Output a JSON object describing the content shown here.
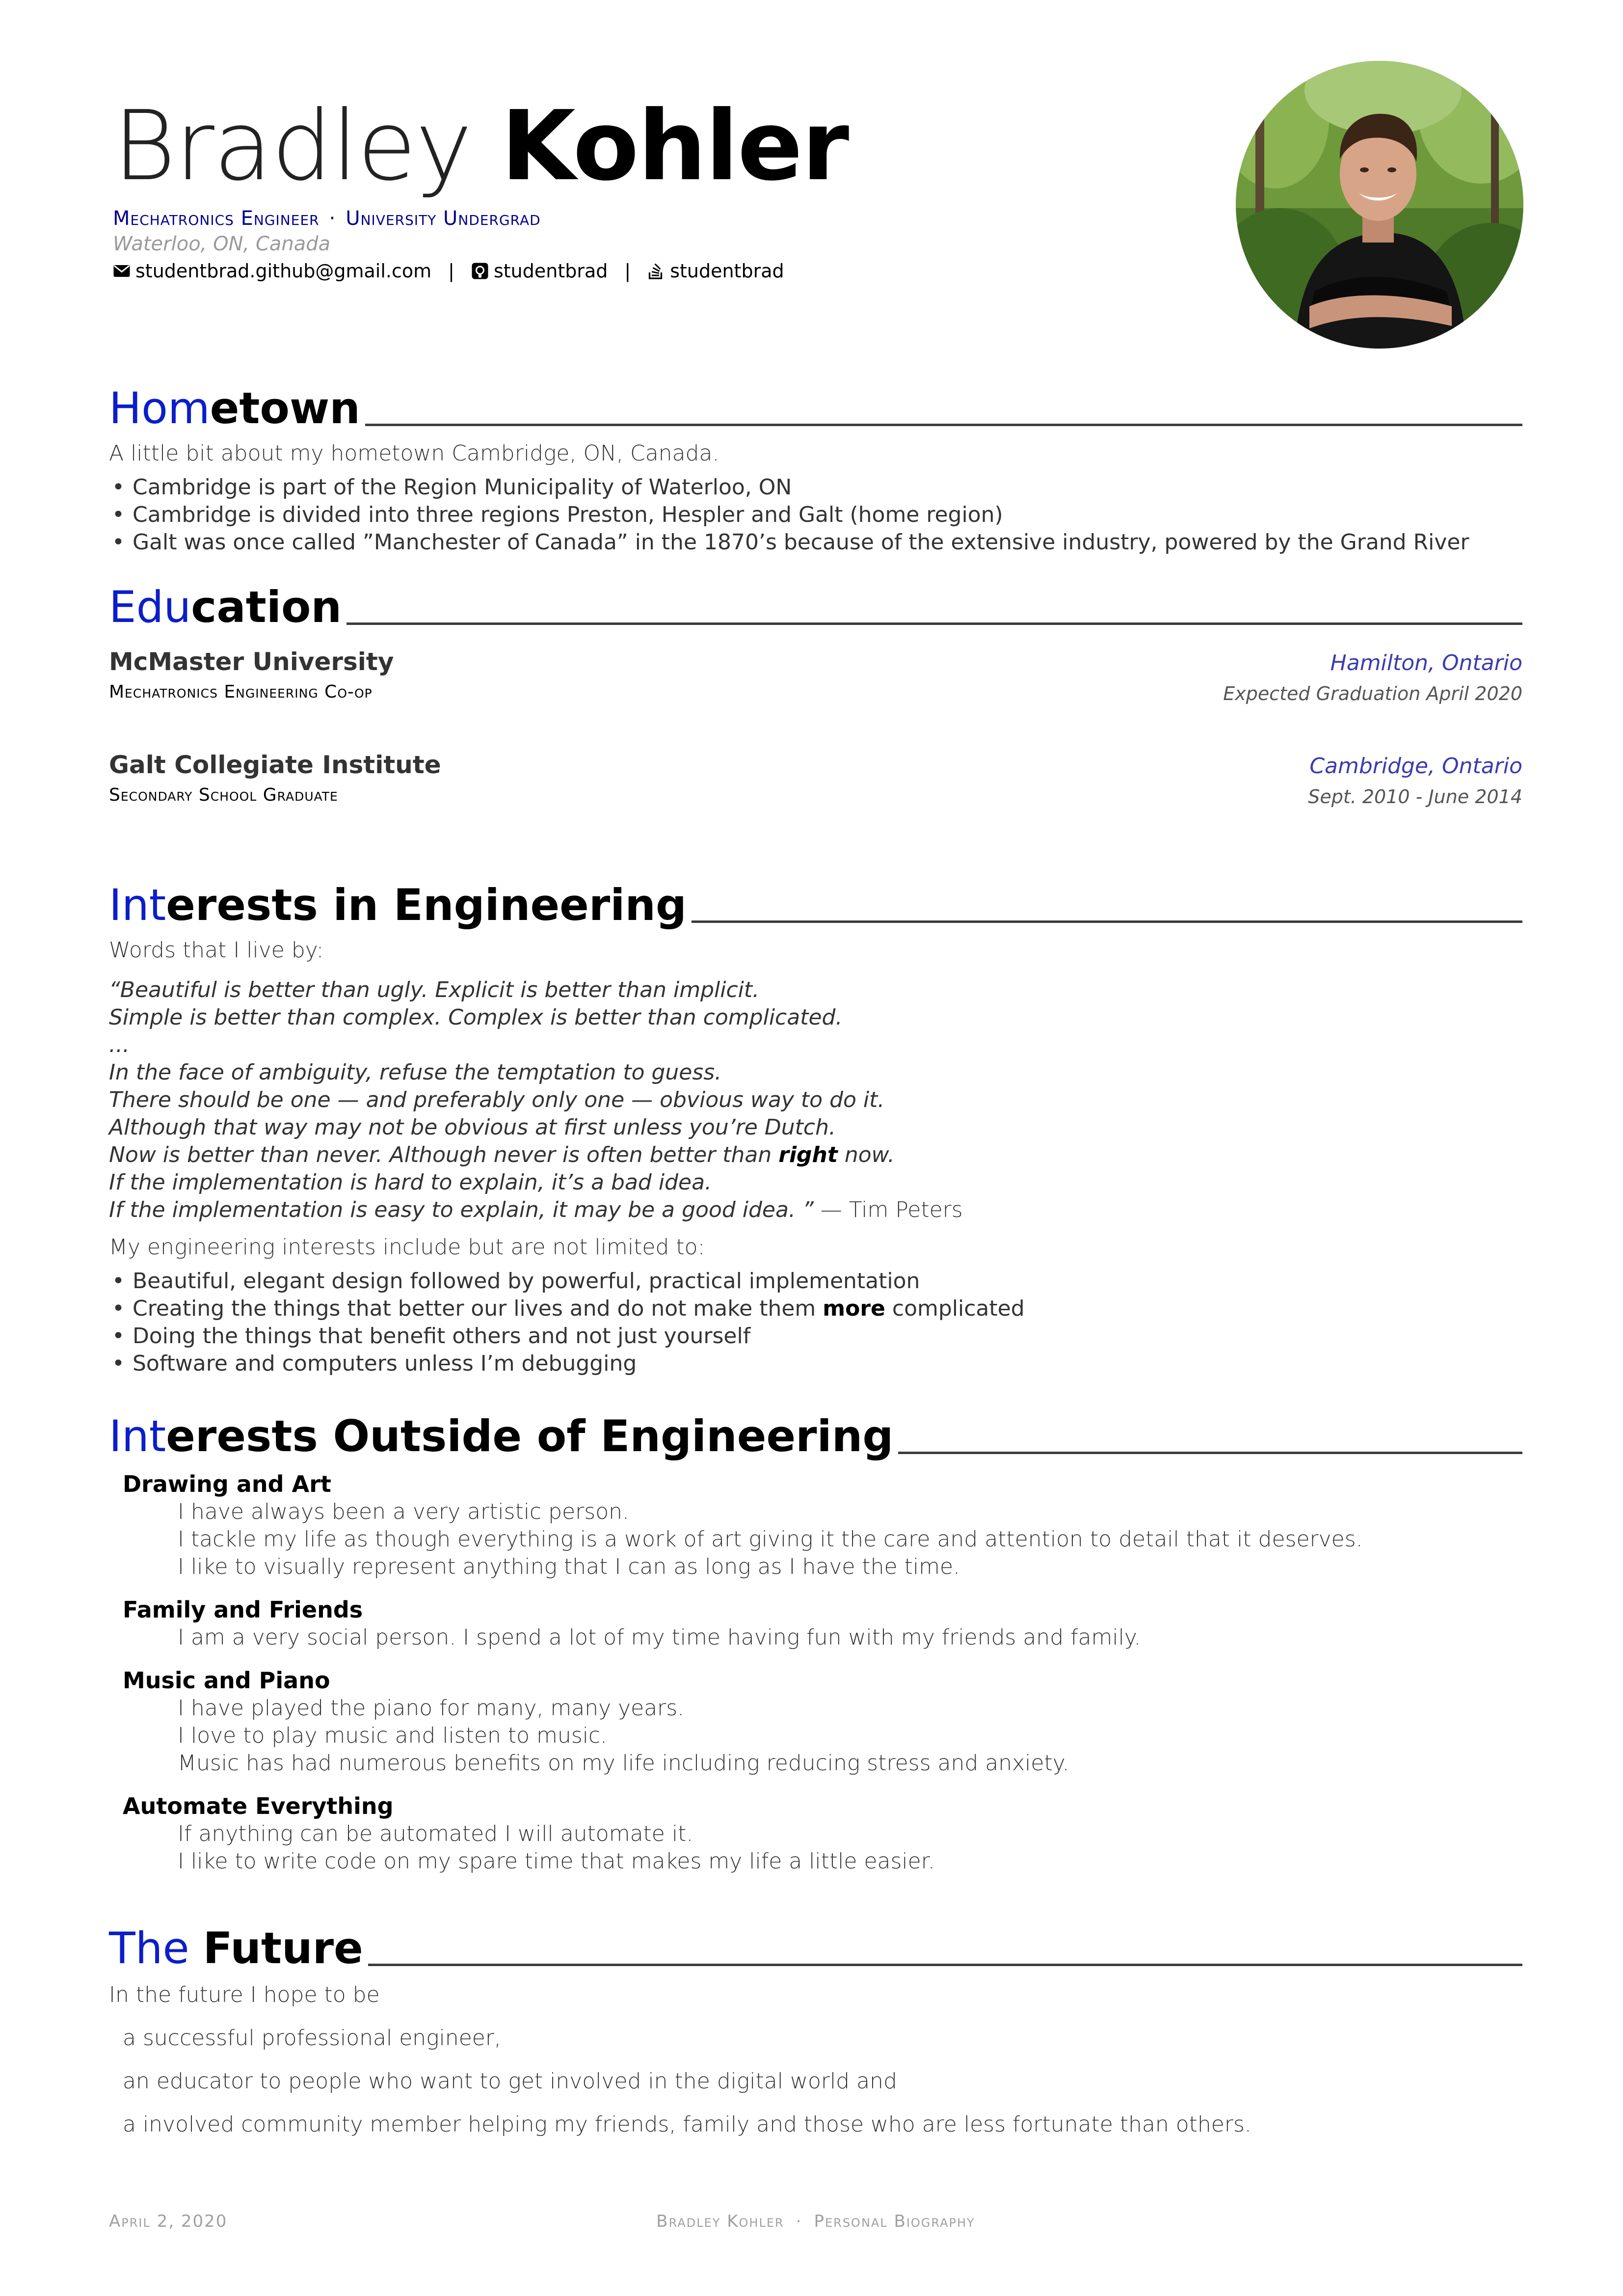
{
  "header": {
    "first_name": "Bradley",
    "last_name": "Kohler",
    "positions": [
      "Mechatronics Engineer",
      "University Undergrad"
    ],
    "position_separator": "·",
    "address": "Waterloo, ON, Canada",
    "contacts": [
      {
        "icon": "envelope-icon",
        "text": "studentbrad.github@gmail.com"
      },
      {
        "icon": "github-icon",
        "text": "studentbrad"
      },
      {
        "icon": "stackoverflow-icon",
        "text": "studentbrad"
      }
    ],
    "contact_separator": "|"
  },
  "hometown": {
    "title_accent": "Hom",
    "title_rest": "etown",
    "intro": "A little bit about my hometown Cambridge, ON, Canada.",
    "items": [
      "Cambridge is part of the Region Municipality of Waterloo, ON",
      "Cambridge is divided into three regions Preston, Hespler and Galt (home region)",
      "Galt was once called ”Manchester of Canada” in the 1870’s because of the extensive industry, powered by the Grand River"
    ]
  },
  "education": {
    "title_accent": "Edu",
    "title_rest": "cation",
    "entries": [
      {
        "school": "McMaster University",
        "degree": "Mechatronics Engineering Co-op",
        "location": "Hamilton, Ontario",
        "date": "Expected Graduation April 2020"
      },
      {
        "school": "Galt Collegiate Institute",
        "degree": "Secondary School Graduate",
        "location": "Cambridge, Ontario",
        "date": "Sept. 2010 - June 2014"
      }
    ]
  },
  "interests_eng": {
    "title_accent": "Int",
    "title_rest": "erests in Engineering",
    "intro": "Words that I live by:",
    "quote_lines": [
      "“Beautiful is better than ugly. Explicit is better than implicit.",
      "Simple is better than complex. Complex is better than complicated.",
      "...",
      "In the face of ambiguity, refuse the temptation to guess.",
      "There should be one — and preferably only one — obvious way to do it.",
      "Although that way may not be obvious at first unless you’re Dutch."
    ],
    "quote_now_before": "Now is better than never. Although never is often better than ",
    "quote_now_strong": "right",
    "quote_now_after": " now.",
    "quote_line_hard": "If the implementation is hard to explain, it’s a bad idea.",
    "quote_line_easy": "If the implementation is easy to explain, it may be a good idea. ”",
    "quote_author": " — Tim Peters",
    "lead": "My engineering interests include but are not limited to:",
    "item1": "Beautiful, elegant design followed by powerful, practical implementation",
    "item2_before": "Creating the things that better our lives and do not make them ",
    "item2_strong": "more",
    "item2_after": " complicated",
    "item3": "Doing the things that benefit others and not just yourself",
    "item4": "Software and computers unless I’m debugging"
  },
  "interests_out": {
    "title_accent": "Int",
    "title_rest": "erests Outside of Engineering",
    "groups": [
      {
        "title": "Drawing and Art",
        "lines": [
          "I have always been a very artistic person.",
          "I tackle my life as though everything is a work of art giving it the care and attention to detail that it deserves.",
          "I like to visually represent anything that I can as long as I have the time."
        ]
      },
      {
        "title": "Family and Friends",
        "lines": [
          "I am a very social person. I spend a lot of my time having fun with my friends and family."
        ]
      },
      {
        "title": "Music and Piano",
        "lines": [
          "I have played the piano for many, many years.",
          "I love to play music and listen to music.",
          "Music has had numerous benefits on my life including reducing stress and anxiety."
        ]
      },
      {
        "title": "Automate Everything",
        "lines": [
          "If anything can be automated I will automate it.",
          "I like to write code on my spare time that makes my life a little easier."
        ]
      }
    ]
  },
  "future": {
    "title_accent": "The ",
    "title_rest": "Future",
    "intro": "In the future I hope to be",
    "lines": [
      "a successful professional engineer,",
      "an educator to people who want to get involved in the digital world and",
      "a involved community member helping my friends, family and those who are less fortunate than others."
    ]
  },
  "footer": {
    "date": "April 2, 2020",
    "name": "Bradley Kohler",
    "separator": "·",
    "doc": "Personal Biography"
  },
  "colors": {
    "accent": "#0b1ecb",
    "position": "#00008b",
    "location": "#3b3bb0",
    "rule": "#3c3c3c"
  }
}
